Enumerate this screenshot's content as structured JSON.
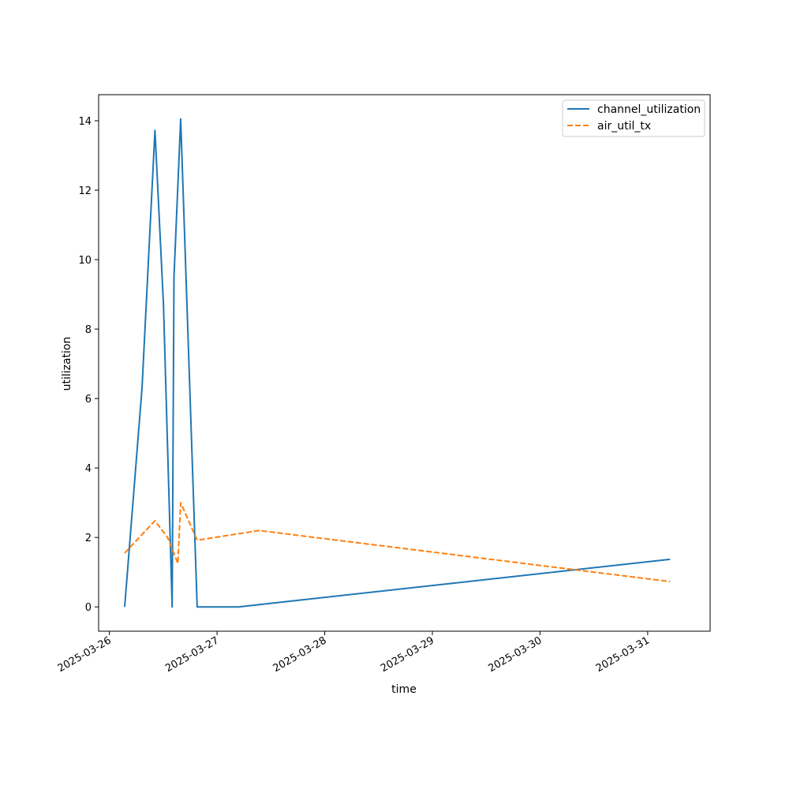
{
  "chart_data": {
    "type": "line",
    "title": "",
    "xlabel": "time",
    "ylabel": "utilization",
    "xlim": [
      "2025-03-25T21:36",
      "2025-03-31T13:55"
    ],
    "ylim": [
      -0.7,
      14.75
    ],
    "x_ticks": [
      "2025-03-26",
      "2025-03-27",
      "2025-03-28",
      "2025-03-29",
      "2025-03-30",
      "2025-03-31"
    ],
    "y_ticks": [
      0,
      2,
      4,
      6,
      8,
      10,
      12,
      14
    ],
    "grid": false,
    "legend_position": "top-right",
    "series": [
      {
        "name": "channel_utilization",
        "color": "#1f77b4",
        "dash": "solid",
        "x": [
          "2025-03-26T03:24",
          "2025-03-26T07:16",
          "2025-03-26T10:09",
          "2025-03-26T12:04",
          "2025-03-26T14:00",
          "2025-03-26T14:24",
          "2025-03-26T15:54",
          "2025-03-26T19:34",
          "2025-03-27T04:44",
          "2025-03-31T04:59"
        ],
        "values": [
          0.0,
          6.3,
          13.72,
          8.7,
          0.0,
          9.5,
          14.05,
          0.0,
          0.0,
          1.37
        ]
      },
      {
        "name": "air_util_tx",
        "color": "#ff7f0e",
        "dash": "dashed",
        "x": [
          "2025-03-26T03:24",
          "2025-03-26T10:09",
          "2025-03-26T12:58",
          "2025-03-26T15:16",
          "2025-03-26T15:54",
          "2025-03-26T19:34",
          "2025-03-27T09:22",
          "2025-03-31T04:59"
        ],
        "values": [
          1.55,
          2.48,
          2.0,
          1.25,
          3.0,
          1.92,
          2.2,
          0.73
        ]
      }
    ]
  }
}
